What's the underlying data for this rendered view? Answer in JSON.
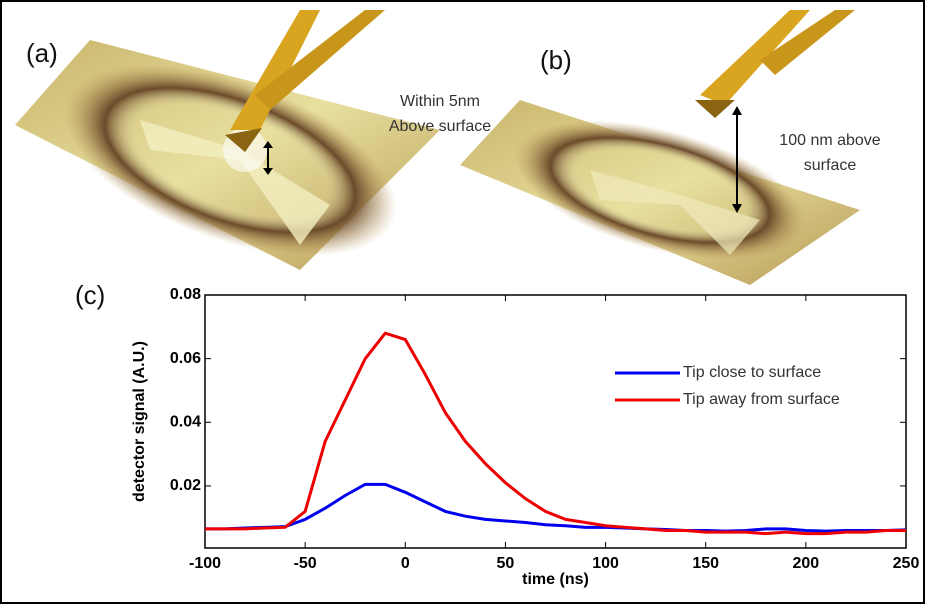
{
  "panel_labels": [
    "(a)",
    "(b)",
    "(c)"
  ],
  "annotations": [
    "Within 5nm",
    "Above surface",
    "100 nm above",
    "surface"
  ],
  "chart_data": {
    "type": "line",
    "xlabel": "time (ns)",
    "ylabel": "detector signal (A.U.)",
    "x": [
      -100,
      -90,
      -80,
      -70,
      -60,
      -50,
      -40,
      -30,
      -20,
      -10,
      0,
      10,
      20,
      30,
      40,
      50,
      60,
      70,
      80,
      90,
      100,
      110,
      120,
      130,
      140,
      150,
      160,
      170,
      180,
      190,
      200,
      210,
      220,
      230,
      240,
      250
    ],
    "series": [
      {
        "name": "Tip close to surface",
        "color": "#0000ee",
        "values": [
          0.0065,
          0.0065,
          0.0068,
          0.007,
          0.0072,
          0.0095,
          0.013,
          0.017,
          0.0205,
          0.0205,
          0.018,
          0.015,
          0.012,
          0.0105,
          0.0095,
          0.009,
          0.0085,
          0.0078,
          0.0075,
          0.007,
          0.007,
          0.0068,
          0.0065,
          0.0063,
          0.006,
          0.006,
          0.0058,
          0.006,
          0.0065,
          0.0065,
          0.006,
          0.0058,
          0.006,
          0.006,
          0.006,
          0.0062
        ]
      },
      {
        "name": "Tip away from surface",
        "color": "#ee0000",
        "values": [
          0.0065,
          0.0065,
          0.0065,
          0.0068,
          0.007,
          0.012,
          0.034,
          0.047,
          0.06,
          0.068,
          0.066,
          0.055,
          0.043,
          0.034,
          0.027,
          0.021,
          0.016,
          0.012,
          0.0095,
          0.0085,
          0.0075,
          0.007,
          0.0065,
          0.006,
          0.006,
          0.0055,
          0.0055,
          0.0055,
          0.005,
          0.0055,
          0.005,
          0.005,
          0.0055,
          0.0055,
          0.006,
          0.006
        ]
      }
    ],
    "xlim": [
      -100,
      250
    ],
    "xticks": [
      -100,
      -50,
      0,
      50,
      100,
      150,
      200,
      250
    ],
    "ylim": [
      0.0005,
      0.08
    ],
    "yticks": [
      0.02,
      0.04,
      0.06,
      0.08
    ]
  }
}
